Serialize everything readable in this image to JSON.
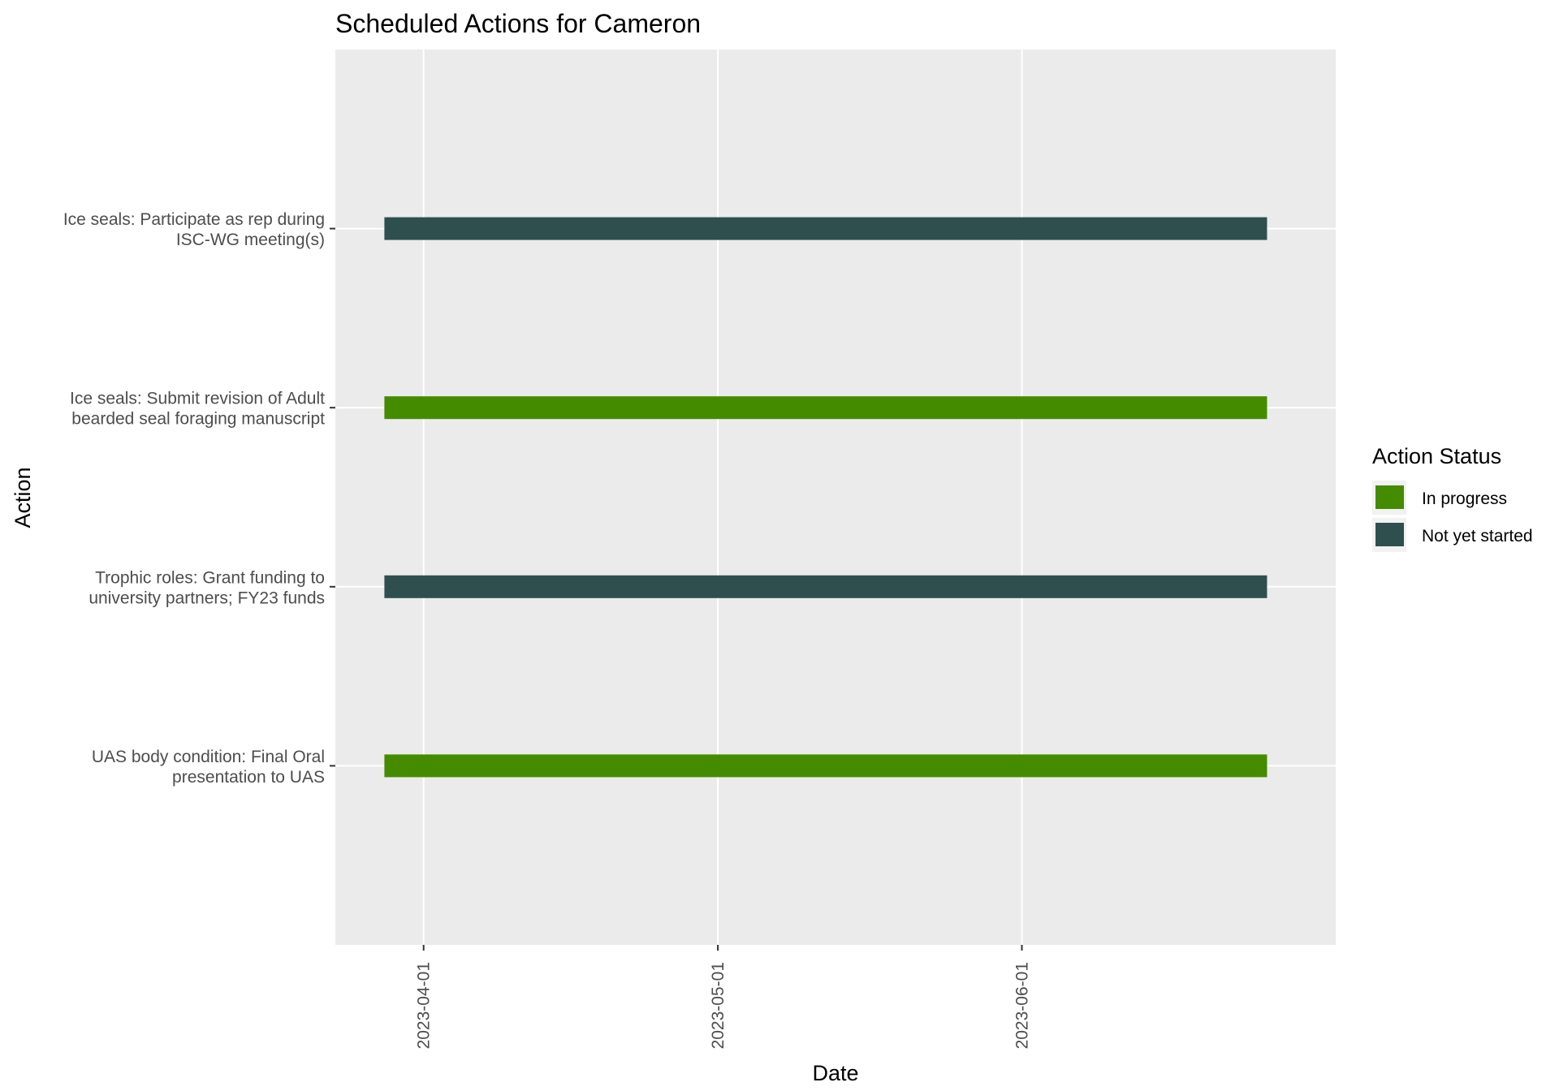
{
  "chart_data": {
    "type": "gantt",
    "title": "Scheduled Actions for Cameron",
    "xlabel": "Date",
    "ylabel": "Action",
    "xlim": [
      "2023-03-23",
      "2023-07-03"
    ],
    "x_ticks": [
      "2023-04-01",
      "2023-05-01",
      "2023-06-01"
    ],
    "grid": true,
    "panel_background": "#ebebeb",
    "legend": {
      "title": "Action Status",
      "placement": "right",
      "entries": [
        {
          "label": "In progress",
          "color": "#458b00"
        },
        {
          "label": "Not yet started",
          "color": "#2f4f4f"
        }
      ]
    },
    "tasks": [
      {
        "label_lines": [
          "Ice seals: Participate as rep during",
          "ISC-WG meeting(s)"
        ],
        "status": "Not yet started",
        "start": "2023-03-28",
        "end": "2023-06-26"
      },
      {
        "label_lines": [
          "Ice seals: Submit revision of Adult",
          "bearded seal foraging manuscript"
        ],
        "status": "In progress",
        "start": "2023-03-28",
        "end": "2023-06-26"
      },
      {
        "label_lines": [
          "Trophic roles: Grant funding to",
          "university partners; FY23 funds"
        ],
        "status": "Not yet started",
        "start": "2023-03-28",
        "end": "2023-06-26"
      },
      {
        "label_lines": [
          "UAS body condition: Final Oral",
          "presentation to UAS"
        ],
        "status": "In progress",
        "start": "2023-03-28",
        "end": "2023-06-26"
      }
    ]
  }
}
